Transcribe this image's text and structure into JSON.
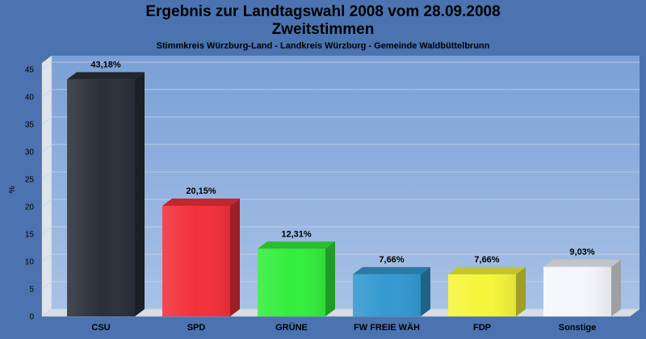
{
  "header": {
    "title_line1": "Ergebnis zur Landtagswahl 2008 vom 28.09.2008",
    "title_line2": "Zweitstimmen",
    "subtitle": "Stimmkreis Würzburg-Land - Landkreis Würzburg - Gemeinde Waldbüttelbrunn"
  },
  "chart_data": {
    "type": "bar",
    "title": "Ergebnis zur Landtagswahl 2008 vom 28.09.2008 Zweitstimmen",
    "subtitle": "Stimmkreis Würzburg-Land - Landkreis Würzburg - Gemeinde Waldbüttelbrunn",
    "xlabel": "",
    "ylabel": "%",
    "ylim": [
      0,
      45
    ],
    "yticks": [
      0,
      5,
      10,
      15,
      20,
      25,
      30,
      35,
      40,
      45
    ],
    "grid": true,
    "categories": [
      "CSU",
      "SPD",
      "GRÜNE",
      "FW FREIE WÄH",
      "FDP",
      "Sonstige"
    ],
    "values": [
      43.18,
      20.15,
      12.31,
      7.66,
      7.66,
      9.03
    ],
    "value_labels": [
      "43,18%",
      "20,15%",
      "12,31%",
      "7,66%",
      "7,66%",
      "9,03%"
    ],
    "colors": [
      "#2b2f38",
      "#f2303a",
      "#33ee3c",
      "#3399d0",
      "#f5f53a",
      "#f4f6fb"
    ]
  }
}
